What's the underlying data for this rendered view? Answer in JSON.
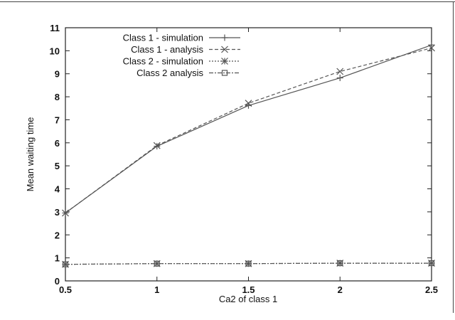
{
  "chart_data": {
    "type": "line",
    "title": "",
    "xlabel": "Ca2 of class 1",
    "ylabel": "Mean waiting time",
    "xlim": [
      0.5,
      2.5
    ],
    "ylim": [
      0,
      11
    ],
    "x_ticks": [
      "0.5",
      "1",
      "1.5",
      "2",
      "2.5"
    ],
    "y_ticks": [
      "0",
      "1",
      "2",
      "3",
      "4",
      "5",
      "6",
      "7",
      "8",
      "9",
      "10",
      "11"
    ],
    "x": [
      0.5,
      1,
      1.5,
      2,
      2.5
    ],
    "grid": false,
    "legend_position": "top-left",
    "series": [
      {
        "name": "Class 1 - simulation",
        "values": [
          2.95,
          5.85,
          7.62,
          8.82,
          10.25
        ],
        "marker": "plus",
        "dash": "solid",
        "color": "#555555"
      },
      {
        "name": "Class 1 - analysis",
        "values": [
          2.95,
          5.88,
          7.72,
          9.1,
          10.12
        ],
        "marker": "cross",
        "dash": "dashed",
        "color": "#555555"
      },
      {
        "name": "Class 2 - simulation",
        "values": [
          0.72,
          0.75,
          0.75,
          0.77,
          0.77
        ],
        "marker": "star",
        "dash": "dotted",
        "color": "#555555"
      },
      {
        "name": "Class 2 analysis",
        "values": [
          0.72,
          0.75,
          0.75,
          0.77,
          0.77
        ],
        "marker": "square",
        "dash": "dashdot",
        "color": "#555555"
      }
    ]
  }
}
